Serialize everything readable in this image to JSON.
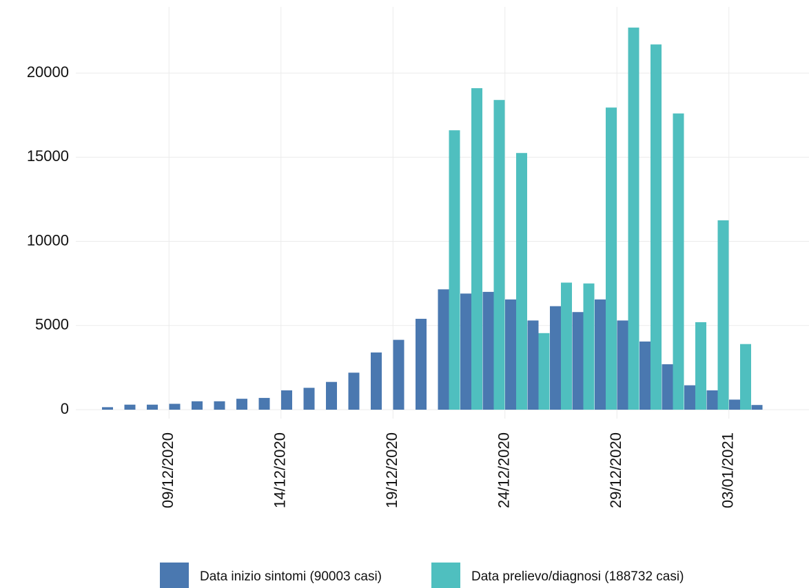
{
  "chart_data": {
    "type": "bar",
    "categories": [
      null,
      null,
      null,
      "09/12/2020",
      null,
      null,
      null,
      null,
      "14/12/2020",
      null,
      null,
      null,
      null,
      "19/12/2020",
      null,
      null,
      null,
      null,
      "24/12/2020",
      null,
      null,
      null,
      null,
      "29/12/2020",
      null,
      null,
      null,
      null,
      "03/01/2021",
      null
    ],
    "series": [
      {
        "name": "Data inizio sintomi (90003 casi)",
        "color": "#4a78b0",
        "values": [
          150,
          300,
          300,
          350,
          500,
          500,
          650,
          700,
          1150,
          1300,
          1650,
          2200,
          3400,
          4150,
          5400,
          7150,
          6900,
          7000,
          6550,
          5300,
          6150,
          5800,
          6550,
          5300,
          4050,
          2700,
          1450,
          1150,
          600,
          280
        ]
      },
      {
        "name": "Data prelievo/diagnosi (188732 casi)",
        "color": "#4fbfbf",
        "values": [
          null,
          null,
          null,
          null,
          null,
          null,
          null,
          null,
          null,
          null,
          null,
          null,
          null,
          null,
          null,
          16600,
          19100,
          18400,
          15250,
          4550,
          7550,
          7500,
          17950,
          22700,
          21700,
          17600,
          5200,
          11250,
          3900,
          null
        ]
      }
    ],
    "ylim": [
      -530,
      23930
    ],
    "yticks": [
      0,
      5000,
      10000,
      15000,
      20000
    ],
    "grid": true
  }
}
